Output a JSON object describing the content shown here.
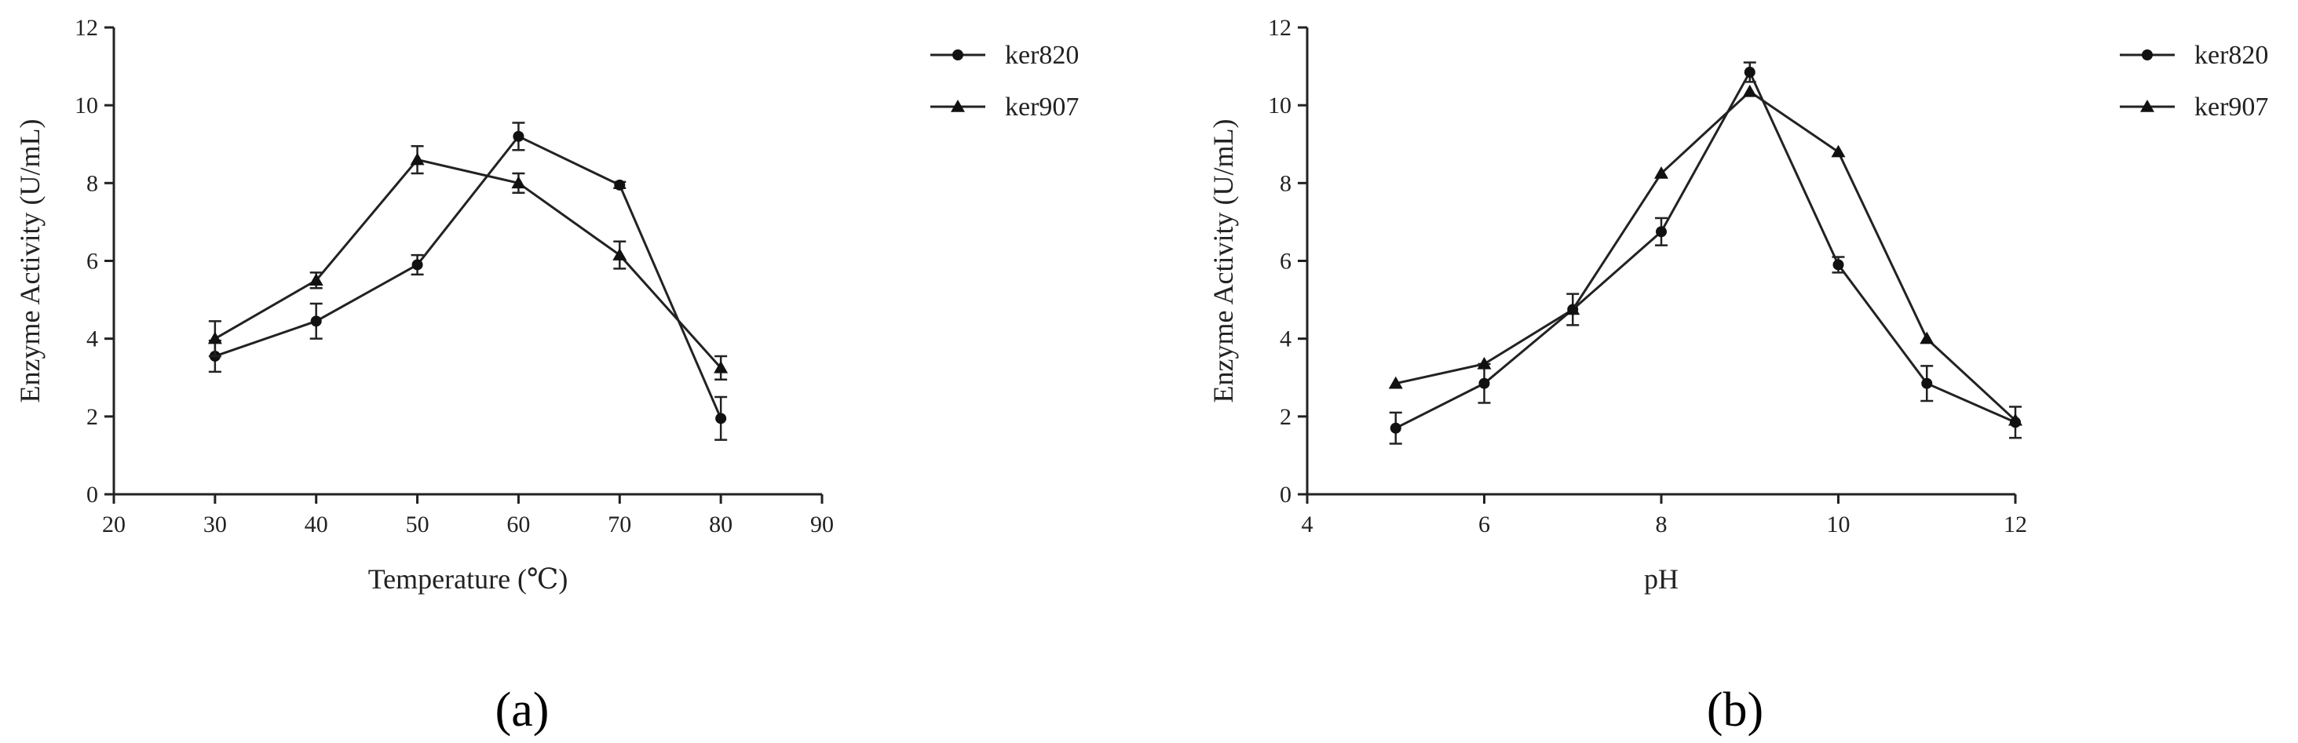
{
  "chart_data": [
    {
      "type": "line",
      "panel_label": "(a)",
      "xlabel": "Temperature (℃)",
      "ylabel": "Enzyme Activity (U/mL)",
      "xlim": [
        20,
        90
      ],
      "ylim": [
        0,
        12
      ],
      "xticks": [
        20,
        30,
        40,
        50,
        60,
        70,
        80,
        90
      ],
      "yticks": [
        0,
        2,
        4,
        6,
        8,
        10,
        12
      ],
      "legend_position": "top-right outside",
      "series": [
        {
          "name": "ker820",
          "marker": "circle",
          "x": [
            30,
            40,
            50,
            60,
            70,
            80
          ],
          "y": [
            3.55,
            4.45,
            5.9,
            9.2,
            7.95,
            1.95
          ],
          "err": [
            0.4,
            0.45,
            0.25,
            0.35,
            0.08,
            0.55
          ]
        },
        {
          "name": "ker907",
          "marker": "triangle",
          "x": [
            30,
            40,
            50,
            60,
            70,
            80
          ],
          "y": [
            4.0,
            5.5,
            8.6,
            8.0,
            6.15,
            3.25
          ],
          "err": [
            0.45,
            0.2,
            0.35,
            0.25,
            0.35,
            0.3
          ]
        }
      ]
    },
    {
      "type": "line",
      "panel_label": "(b)",
      "xlabel": "pH",
      "ylabel": "Enzyme Activity (U/mL)",
      "xlim": [
        4,
        12
      ],
      "ylim": [
        0,
        12
      ],
      "xticks": [
        4,
        6,
        8,
        10,
        12
      ],
      "yticks": [
        0,
        2,
        4,
        6,
        8,
        10,
        12
      ],
      "legend_position": "top-right outside",
      "series": [
        {
          "name": "ker820",
          "marker": "circle",
          "x": [
            5,
            6,
            7,
            8,
            9,
            10,
            11,
            12
          ],
          "y": [
            1.7,
            2.85,
            4.75,
            6.75,
            10.85,
            5.9,
            2.85,
            1.85
          ],
          "err": [
            0.4,
            0.5,
            0.4,
            0.35,
            0.25,
            0.2,
            0.45,
            0.4
          ]
        },
        {
          "name": "ker907",
          "marker": "triangle",
          "x": [
            5,
            6,
            7,
            8,
            9,
            10,
            11,
            12
          ],
          "y": [
            2.85,
            3.35,
            4.75,
            8.25,
            10.35,
            8.8,
            4.0,
            1.9
          ],
          "err": [
            0.0,
            0.0,
            0.0,
            0.0,
            0.0,
            0.0,
            0.0,
            0.0
          ]
        }
      ]
    }
  ]
}
